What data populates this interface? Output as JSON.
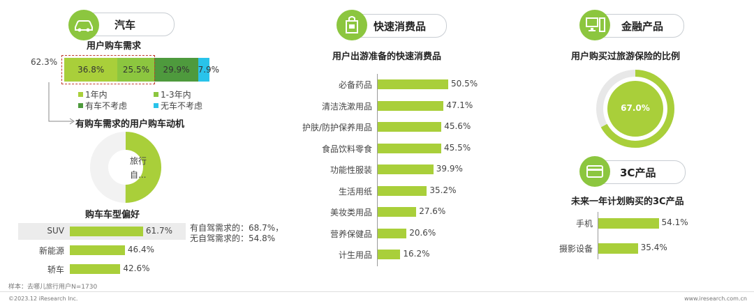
{
  "colors": {
    "green_light": "#a9cf3a",
    "green_mid": "#8cc63f",
    "green_dark": "#4e9a3d",
    "cyan": "#29c3ea",
    "dashed_red": "#c0392b",
    "track": "#e8e8e8"
  },
  "car": {
    "section_label": "汽车",
    "demand_title": "用户购车需求",
    "left_total": "62.3%",
    "demand_bar": [
      {
        "name": "1年内",
        "value": 36.8,
        "label": "36.8%",
        "color": "#a9cf3a"
      },
      {
        "name": "1-3年内",
        "value": 25.5,
        "label": "25.5%",
        "color": "#8cc63f"
      },
      {
        "name": "有车不考虑",
        "value": 29.9,
        "label": "29.9%",
        "color": "#4e9a3d"
      },
      {
        "name": "无车不考虑",
        "value": 7.9,
        "label": "7.9%",
        "color": "#29c3ea"
      }
    ],
    "motive_title": "有购车需求的用户购车动机",
    "motive_donut": {
      "value": 50,
      "label_line1": "旅行",
      "label_line2": "自..."
    },
    "type_title": "购车车型偏好",
    "types": [
      {
        "name": "SUV",
        "value": 61.7,
        "label": "61.7%"
      },
      {
        "name": "新能源",
        "value": 46.4,
        "label": "46.4%"
      },
      {
        "name": "轿车",
        "value": 42.6,
        "label": "42.6%"
      }
    ],
    "note_line1": "有自驾需求的：68.7%，",
    "note_line2": "无自驾需求的：54.8%"
  },
  "fmcg": {
    "section_label": "快速消费品",
    "title": "用户出游准备的快速消费品",
    "items": [
      {
        "name": "必备药品",
        "value": 50.5,
        "label": "50.5%"
      },
      {
        "name": "清洁洗漱用品",
        "value": 47.1,
        "label": "47.1%"
      },
      {
        "name": "护肤/防护保养用品",
        "value": 45.6,
        "label": "45.6%"
      },
      {
        "name": "食品饮料零食",
        "value": 45.5,
        "label": "45.5%"
      },
      {
        "name": "功能性服装",
        "value": 39.9,
        "label": "39.9%"
      },
      {
        "name": "生活用纸",
        "value": 35.2,
        "label": "35.2%"
      },
      {
        "name": "美妆类用品",
        "value": 27.6,
        "label": "27.6%"
      },
      {
        "name": "营养保健品",
        "value": 20.6,
        "label": "20.6%"
      },
      {
        "name": "计生用品",
        "value": 16.2,
        "label": "16.2%"
      }
    ]
  },
  "finance": {
    "section_label": "金融产品",
    "title": "用户购买过旅游保险的比例",
    "donut": {
      "value": 67.0,
      "label": "67.0%"
    }
  },
  "tech": {
    "section_label": "3C产品",
    "title": "未来一年计划购买的3C产品",
    "items": [
      {
        "name": "手机",
        "value": 54.1,
        "label": "54.1%"
      },
      {
        "name": "摄影设备",
        "value": 35.4,
        "label": "35.4%"
      }
    ]
  },
  "chart_data": [
    {
      "type": "bar",
      "title": "用户购车需求",
      "stacked": true,
      "orientation": "horizontal",
      "series": [
        {
          "name": "1年内",
          "values": [
            36.8
          ]
        },
        {
          "name": "1-3年内",
          "values": [
            25.5
          ]
        },
        {
          "name": "有车不考虑",
          "values": [
            29.9
          ]
        },
        {
          "name": "无车不考虑",
          "values": [
            7.9
          ]
        }
      ],
      "annotation": "62.3%"
    },
    {
      "type": "pie",
      "title": "有购车需求的用户购车动机",
      "categories": [
        "旅行自..."
      ],
      "values": [
        50
      ]
    },
    {
      "type": "bar",
      "title": "购车车型偏好",
      "orientation": "horizontal",
      "categories": [
        "SUV",
        "新能源",
        "轿车"
      ],
      "values": [
        61.7,
        46.4,
        42.6
      ]
    },
    {
      "type": "bar",
      "title": "用户出游准备的快速消费品",
      "orientation": "horizontal",
      "categories": [
        "必备药品",
        "清洁洗漱用品",
        "护肤/防护保养用品",
        "食品饮料零食",
        "功能性服装",
        "生活用纸",
        "美妆类用品",
        "营养保健品",
        "计生用品"
      ],
      "values": [
        50.5,
        47.1,
        45.6,
        45.5,
        39.9,
        35.2,
        27.6,
        20.6,
        16.2
      ]
    },
    {
      "type": "pie",
      "title": "用户购买过旅游保险的比例",
      "values": [
        67.0
      ]
    },
    {
      "type": "bar",
      "title": "未来一年计划购买的3C产品",
      "orientation": "horizontal",
      "categories": [
        "手机",
        "摄影设备"
      ],
      "values": [
        54.1,
        35.4
      ]
    }
  ],
  "footer": {
    "sample": "样本：去哪儿旅行用户N=1730",
    "copyright": "©2023.12 iResearch Inc.",
    "site": "www.iresearch.com.cn"
  }
}
